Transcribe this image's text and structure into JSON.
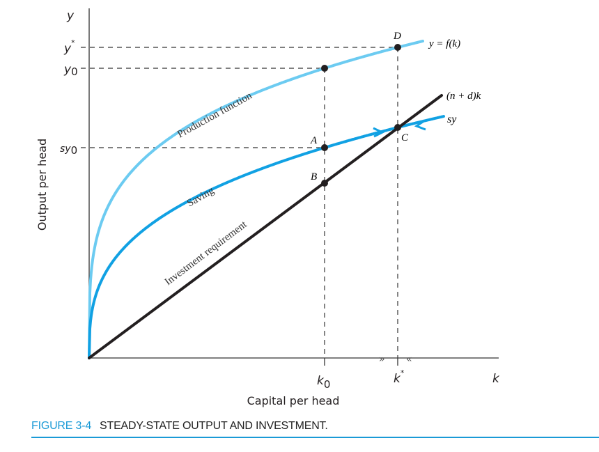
{
  "axes": {
    "y_symbol": "y",
    "k_symbol": "k",
    "y_label": "Output per head",
    "x_label": "Capital per head",
    "ticks_y": {
      "y_star": "y",
      "y_star_sup": "*",
      "y0": "y",
      "y0_sub": "0",
      "sy0": "sy",
      "sy0_sub": "0"
    },
    "ticks_x": {
      "k0": "k",
      "k0_sub": "0",
      "k_star": "k",
      "k_star_sup": "*"
    }
  },
  "curves": {
    "production": {
      "label": "Production function",
      "eq": "y = f(k)",
      "color": "#6ccbf1"
    },
    "saving": {
      "label": "Saving",
      "eq": "sy",
      "color": "#11a1e3"
    },
    "investment": {
      "label": "Investment requirement",
      "eq": "(n + d)k",
      "color": "#231f20"
    }
  },
  "points": {
    "A": "A",
    "B": "B",
    "C": "C",
    "D": "D"
  },
  "caption": {
    "figure": "FIGURE 3-4",
    "title": "STEADY-STATE OUTPUT AND INVESTMENT."
  },
  "colors": {
    "accent": "#1a9ad6"
  }
}
